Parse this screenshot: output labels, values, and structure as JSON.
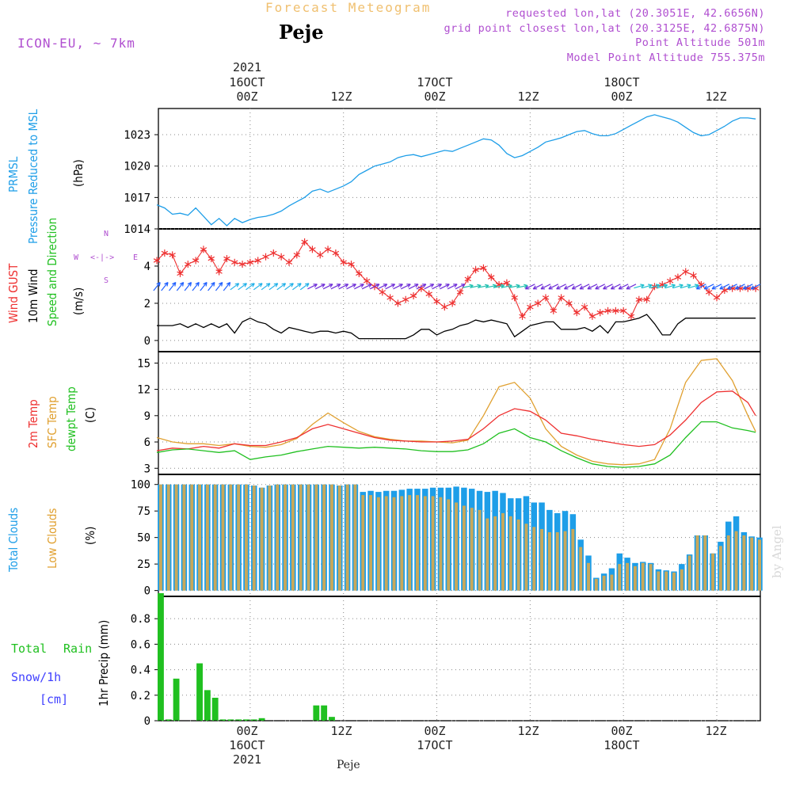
{
  "header": {
    "title": "Forecast Meteogram",
    "station": "Peje",
    "model": "ICON-EU, ~ 7km",
    "requested": "requested lon,lat (20.3051E, 42.6656N)",
    "grid_point": "grid point closest lon,lat (20.3125E, 42.6875N)",
    "point_altitude": "Point Altitude 501m",
    "model_altitude": "Model Point Altitude 755.375m"
  },
  "time_axis": {
    "top_year": "2021",
    "ticks": [
      {
        "day": "16OCT",
        "hour": "00Z",
        "t": 12
      },
      {
        "day": "",
        "hour": "12Z",
        "t": 24
      },
      {
        "day": "17OCT",
        "hour": "00Z",
        "t": 36
      },
      {
        "day": "",
        "hour": "12Z",
        "t": 48
      },
      {
        "day": "18OCT",
        "hour": "00Z",
        "t": 60
      },
      {
        "day": "",
        "hour": "12Z",
        "t": 72
      }
    ],
    "bottom_year": "2021",
    "footer": "Peje",
    "watermark": "by Angel",
    "t_min": 0.2,
    "t_max": 77.6
  },
  "panels": {
    "pressure": {
      "labels": [
        "PRMSL",
        "Pressure Reduced to MSL"
      ],
      "unit": "(hPa)",
      "yticks": [
        1014,
        1017,
        1020,
        1023
      ]
    },
    "wind": {
      "labels": [
        "Wind GUST",
        "10m Wind",
        "Speed and Direction"
      ],
      "unit": "(m/s)",
      "yticks": [
        0,
        2,
        4
      ],
      "compass": {
        "n": "N",
        "w": "W",
        "e": "E",
        "s": "S",
        "arrow": "<-|->"
      }
    },
    "temp": {
      "labels": [
        "2m Temp",
        "SFC Temp",
        "dewpt Temp"
      ],
      "unit": "(C)",
      "yticks": [
        3,
        6,
        9,
        12,
        15
      ]
    },
    "clouds": {
      "labels": [
        "Total Clouds",
        "Low Clouds"
      ],
      "unit": "(%)",
      "yticks": [
        0,
        25,
        50,
        75,
        100
      ]
    },
    "precip": {
      "labels": [
        "Total",
        "Rain",
        "Snow/1h",
        "[cm]"
      ],
      "unit": "1hr Precip (mm)",
      "yticks": [
        0,
        0.2,
        0.4,
        0.6,
        0.8
      ]
    }
  },
  "colors": {
    "pressure": "#1e9ee8",
    "gust": "#ee3030",
    "wind10m": "#000000",
    "temp2m": "#ee3030",
    "sfc": "#e0a030",
    "dewpt": "#20c020",
    "total_clouds": "#1e9ee8",
    "low_clouds": "#c8a85a",
    "rain": "#20c020",
    "snow": "#4040ff",
    "purple": "#b04fd0",
    "grid": "#888888"
  },
  "chart_data": {
    "type": "line",
    "x_unit": "forecast hour from 2021-10-15 12Z",
    "pressure": {
      "x": [
        0,
        1,
        2,
        3,
        4,
        5,
        6,
        7,
        8,
        9,
        10,
        11,
        12,
        13,
        14,
        15,
        16,
        17,
        18,
        19,
        20,
        21,
        22,
        23,
        24,
        25,
        26,
        27,
        28,
        29,
        30,
        31,
        32,
        33,
        34,
        35,
        36,
        37,
        38,
        39,
        40,
        41,
        42,
        43,
        44,
        45,
        46,
        47,
        48,
        49,
        50,
        51,
        52,
        53,
        54,
        55,
        56,
        57,
        58,
        59,
        60,
        61,
        62,
        63,
        64,
        65,
        66,
        67,
        68,
        69,
        70,
        71,
        72,
        73,
        74,
        75,
        76,
        77
      ],
      "y": [
        1016.3,
        1016.0,
        1015.4,
        1015.5,
        1015.3,
        1016.0,
        1015.2,
        1014.4,
        1015.0,
        1014.3,
        1015.0,
        1014.6,
        1014.9,
        1015.1,
        1015.2,
        1015.4,
        1015.7,
        1016.2,
        1016.6,
        1017.0,
        1017.6,
        1017.8,
        1017.5,
        1017.8,
        1018.1,
        1018.5,
        1019.2,
        1019.6,
        1020.0,
        1020.2,
        1020.4,
        1020.8,
        1021.0,
        1021.1,
        1020.9,
        1021.1,
        1021.3,
        1021.5,
        1021.4,
        1021.7,
        1022.0,
        1022.3,
        1022.6,
        1022.5,
        1022.0,
        1021.2,
        1020.8,
        1021.0,
        1021.4,
        1021.8,
        1022.3,
        1022.5,
        1022.7,
        1023.0,
        1023.3,
        1023.4,
        1023.1,
        1022.9,
        1022.9,
        1023.1,
        1023.5,
        1023.9,
        1024.3,
        1024.7,
        1024.9,
        1024.7,
        1024.5,
        1024.2,
        1023.7,
        1023.2,
        1022.9,
        1023.0,
        1023.4,
        1023.8,
        1024.3,
        1024.6,
        1024.6,
        1024.5
      ]
    },
    "wind_gust": {
      "x": [
        0,
        1,
        2,
        3,
        4,
        5,
        6,
        7,
        8,
        9,
        10,
        11,
        12,
        13,
        14,
        15,
        16,
        17,
        18,
        19,
        20,
        21,
        22,
        23,
        24,
        25,
        26,
        27,
        28,
        29,
        30,
        31,
        32,
        33,
        34,
        35,
        36,
        37,
        38,
        39,
        40,
        41,
        42,
        43,
        44,
        45,
        46,
        47,
        48,
        49,
        50,
        51,
        52,
        53,
        54,
        55,
        56,
        57,
        58,
        59,
        60,
        61,
        62,
        63,
        64,
        65,
        66,
        67,
        68,
        69,
        70,
        71,
        72,
        73,
        74,
        75,
        76,
        77
      ],
      "y": [
        4.3,
        4.7,
        4.6,
        3.6,
        4.1,
        4.3,
        4.9,
        4.4,
        3.7,
        4.4,
        4.2,
        4.1,
        4.2,
        4.3,
        4.5,
        4.7,
        4.5,
        4.2,
        4.6,
        5.3,
        4.9,
        4.6,
        4.9,
        4.7,
        4.2,
        4.1,
        3.6,
        3.2,
        2.9,
        2.6,
        2.3,
        2.0,
        2.2,
        2.4,
        2.8,
        2.5,
        2.1,
        1.8,
        2.0,
        2.6,
        3.3,
        3.8,
        3.9,
        3.4,
        3.0,
        3.1,
        2.3,
        1.3,
        1.8,
        2.0,
        2.3,
        1.6,
        2.3,
        2.0,
        1.5,
        1.8,
        1.3,
        1.5,
        1.6,
        1.6,
        1.6,
        1.3,
        2.2,
        2.2,
        2.9,
        3.0,
        3.2,
        3.4,
        3.7,
        3.5,
        3.0,
        2.6,
        2.3,
        2.7,
        2.8,
        2.8,
        2.8,
        2.8
      ]
    },
    "wind_10m": {
      "x": [
        0,
        1,
        2,
        3,
        4,
        5,
        6,
        7,
        8,
        9,
        10,
        11,
        12,
        13,
        14,
        15,
        16,
        17,
        18,
        19,
        20,
        21,
        22,
        23,
        24,
        25,
        26,
        27,
        28,
        29,
        30,
        31,
        32,
        33,
        34,
        35,
        36,
        37,
        38,
        39,
        40,
        41,
        42,
        43,
        44,
        45,
        46,
        47,
        48,
        49,
        50,
        51,
        52,
        53,
        54,
        55,
        56,
        57,
        58,
        59,
        60,
        61,
        62,
        63,
        64,
        65,
        66,
        67,
        68,
        69,
        70,
        71,
        72,
        73,
        74,
        75,
        76,
        77
      ],
      "y": [
        0.8,
        0.8,
        0.8,
        0.9,
        0.7,
        0.9,
        0.7,
        0.9,
        0.7,
        0.9,
        0.4,
        1.0,
        1.2,
        1.0,
        0.9,
        0.6,
        0.4,
        0.7,
        0.6,
        0.5,
        0.4,
        0.5,
        0.5,
        0.4,
        0.5,
        0.4,
        0.1,
        0.1,
        0.1,
        0.1,
        0.1,
        0.1,
        0.1,
        0.3,
        0.6,
        0.6,
        0.3,
        0.5,
        0.6,
        0.8,
        0.9,
        1.1,
        1.0,
        1.1,
        1.0,
        0.9,
        0.2,
        0.5,
        0.8,
        0.9,
        1.0,
        1.0,
        0.6,
        0.6,
        0.6,
        0.7,
        0.5,
        0.8,
        0.4,
        1.0,
        1.0,
        1.1,
        1.2,
        1.4,
        0.9,
        0.3,
        0.3,
        0.9,
        1.2,
        1.2,
        1.2,
        1.2,
        1.2,
        1.2,
        1.2,
        1.2,
        1.2,
        1.2
      ]
    },
    "wind_dir_arrows_y": 2.9,
    "temperature": {
      "x": [
        0,
        2,
        4,
        6,
        8,
        10,
        12,
        14,
        16,
        18,
        20,
        22,
        24,
        26,
        28,
        30,
        32,
        34,
        36,
        38,
        40,
        42,
        44,
        46,
        48,
        50,
        52,
        54,
        56,
        58,
        60,
        62,
        64,
        66,
        68,
        70,
        72,
        74,
        76,
        77
      ],
      "t2m": [
        5.0,
        5.3,
        5.2,
        5.5,
        5.3,
        5.8,
        5.6,
        5.6,
        6.0,
        6.5,
        7.5,
        8.0,
        7.5,
        7.0,
        6.5,
        6.2,
        6.1,
        6.0,
        6.0,
        6.1,
        6.3,
        7.5,
        9.0,
        9.8,
        9.5,
        8.5,
        7.0,
        6.7,
        6.3,
        6.0,
        5.7,
        5.5,
        5.7,
        6.8,
        8.5,
        10.5,
        11.7,
        11.8,
        10.5,
        9.0
      ],
      "sfc": [
        6.5,
        6.0,
        5.8,
        5.8,
        5.6,
        5.8,
        5.5,
        5.4,
        5.7,
        6.4,
        8.0,
        9.3,
        8.2,
        7.2,
        6.6,
        6.3,
        6.1,
        6.1,
        6.0,
        5.9,
        6.2,
        9.0,
        12.3,
        12.8,
        11.0,
        7.5,
        5.5,
        4.5,
        3.8,
        3.5,
        3.4,
        3.5,
        4.0,
        7.5,
        12.8,
        15.3,
        15.5,
        13.0,
        9.0,
        7.2
      ],
      "dewpt": [
        4.8,
        5.1,
        5.2,
        5.0,
        4.8,
        5.0,
        4.0,
        4.3,
        4.5,
        4.9,
        5.2,
        5.5,
        5.4,
        5.3,
        5.4,
        5.3,
        5.2,
        5.0,
        4.9,
        4.9,
        5.1,
        5.8,
        7.0,
        7.5,
        6.5,
        6.0,
        5.0,
        4.2,
        3.5,
        3.2,
        3.1,
        3.2,
        3.5,
        4.5,
        6.5,
        8.3,
        8.3,
        7.6,
        7.3,
        7.1
      ]
    },
    "clouds": {
      "x": [
        0,
        1,
        2,
        3,
        4,
        5,
        6,
        7,
        8,
        9,
        10,
        11,
        12,
        13,
        14,
        15,
        16,
        17,
        18,
        19,
        20,
        21,
        22,
        23,
        24,
        25,
        26,
        27,
        28,
        29,
        30,
        31,
        32,
        33,
        34,
        35,
        36,
        37,
        38,
        39,
        40,
        41,
        42,
        43,
        44,
        45,
        46,
        47,
        48,
        49,
        50,
        51,
        52,
        53,
        54,
        55,
        56,
        57,
        58,
        59,
        60,
        61,
        62,
        63,
        64,
        65,
        66,
        67,
        68,
        69,
        70,
        71,
        72,
        73,
        74,
        75,
        76,
        77
      ],
      "total": [
        100,
        100,
        100,
        100,
        100,
        100,
        100,
        100,
        100,
        100,
        100,
        100,
        99,
        97,
        99,
        100,
        100,
        100,
        100,
        100,
        100,
        100,
        100,
        99,
        100,
        100,
        93,
        94,
        93,
        94,
        94,
        95,
        96,
        96,
        96,
        97,
        97,
        97,
        98,
        97,
        96,
        94,
        93,
        94,
        92,
        87,
        87,
        89,
        83,
        83,
        76,
        73,
        75,
        72,
        48,
        33,
        12,
        16,
        21,
        35,
        31,
        26,
        27,
        26,
        20,
        19,
        18,
        25,
        34,
        52,
        52,
        35,
        46,
        65,
        70,
        55,
        51,
        50
      ],
      "low": [
        100,
        100,
        100,
        100,
        100,
        100,
        100,
        100,
        100,
        100,
        100,
        100,
        99,
        97,
        99,
        100,
        100,
        100,
        100,
        100,
        100,
        100,
        100,
        99,
        100,
        100,
        90,
        90,
        88,
        89,
        88,
        89,
        90,
        90,
        89,
        89,
        88,
        86,
        83,
        80,
        78,
        76,
        68,
        70,
        73,
        70,
        67,
        63,
        60,
        58,
        55,
        55,
        56,
        58,
        41,
        26,
        11,
        14,
        15,
        25,
        26,
        23,
        26,
        25,
        18,
        18,
        17,
        20,
        33,
        52,
        52,
        35,
        42,
        52,
        56,
        52,
        50,
        48
      ]
    },
    "precip": {
      "x": [
        0,
        1,
        2,
        3,
        4,
        5,
        6,
        7,
        8,
        9,
        10,
        11,
        12,
        13,
        14,
        15,
        16,
        17,
        18,
        19,
        20,
        21,
        22,
        23,
        24,
        25,
        26
      ],
      "rain": [
        1.0,
        0.01,
        0.33,
        0.0,
        0.0,
        0.45,
        0.24,
        0.18,
        0.01,
        0.01,
        0.01,
        0.01,
        0.01,
        0.02,
        0.0,
        0.0,
        0.0,
        0.0,
        0.0,
        0.0,
        0.12,
        0.12,
        0.03,
        0.0,
        0.0,
        0.0,
        0.0
      ]
    }
  }
}
